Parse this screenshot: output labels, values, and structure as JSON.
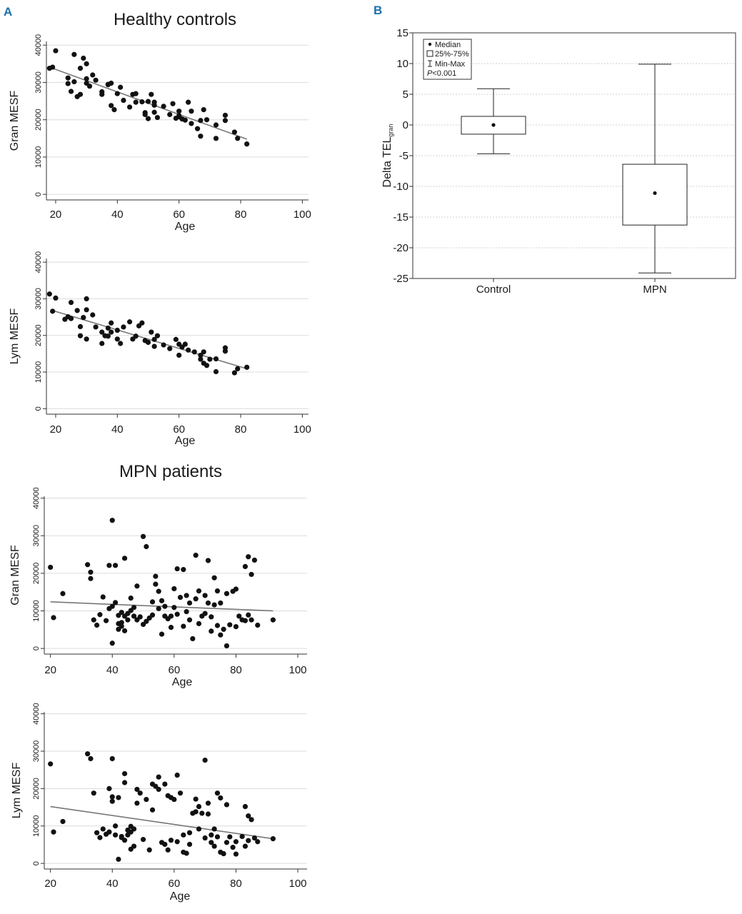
{
  "panel_labels": {
    "a": "A",
    "b": "B"
  },
  "group_titles": {
    "healthy": "Healthy controls",
    "mpn": "MPN patients"
  },
  "chart_data": [
    {
      "id": "healthy-gran",
      "type": "scatter",
      "group": "Healthy controls",
      "xlabel": "Age",
      "ylabel": "Gran MESF",
      "xlim": [
        17,
        102
      ],
      "ylim": [
        -1500,
        41000
      ],
      "xticks": [
        20,
        40,
        60,
        80,
        100
      ],
      "yticks": [
        0,
        10000,
        20000,
        30000,
        40000
      ],
      "grid": true,
      "fit_line": [
        [
          19,
          33800
        ],
        [
          82,
          14800
        ]
      ],
      "points": [
        [
          18,
          33800
        ],
        [
          19,
          34100
        ],
        [
          20,
          38500
        ],
        [
          24,
          31200
        ],
        [
          24,
          29700
        ],
        [
          25,
          27600
        ],
        [
          26,
          30200
        ],
        [
          26,
          37500
        ],
        [
          27,
          26200
        ],
        [
          28,
          26800
        ],
        [
          28,
          33800
        ],
        [
          29,
          36500
        ],
        [
          30,
          35000
        ],
        [
          30,
          31000
        ],
        [
          30,
          29800
        ],
        [
          31,
          29000
        ],
        [
          32,
          32000
        ],
        [
          33,
          30600
        ],
        [
          35,
          27500
        ],
        [
          35,
          26800
        ],
        [
          37,
          29500
        ],
        [
          37,
          29400
        ],
        [
          38,
          23800
        ],
        [
          38,
          29800
        ],
        [
          39,
          22700
        ],
        [
          40,
          27000
        ],
        [
          41,
          28700
        ],
        [
          42,
          25200
        ],
        [
          44,
          23400
        ],
        [
          45,
          26800
        ],
        [
          46,
          24700
        ],
        [
          46,
          27000
        ],
        [
          48,
          24800
        ],
        [
          49,
          21900
        ],
        [
          49,
          21400
        ],
        [
          50,
          20300
        ],
        [
          50,
          24900
        ],
        [
          51,
          26800
        ],
        [
          52,
          23900
        ],
        [
          52,
          22000
        ],
        [
          52,
          24700
        ],
        [
          53,
          20600
        ],
        [
          55,
          23600
        ],
        [
          57,
          21400
        ],
        [
          58,
          24300
        ],
        [
          59,
          20400
        ],
        [
          60,
          22300
        ],
        [
          60,
          20800
        ],
        [
          60,
          21100
        ],
        [
          61,
          20200
        ],
        [
          62,
          19900
        ],
        [
          63,
          24700
        ],
        [
          64,
          19000
        ],
        [
          64,
          22300
        ],
        [
          66,
          17600
        ],
        [
          67,
          15600
        ],
        [
          67,
          19800
        ],
        [
          68,
          22700
        ],
        [
          69,
          20000
        ],
        [
          72,
          18600
        ],
        [
          72,
          15000
        ],
        [
          75,
          21200
        ],
        [
          75,
          19800
        ],
        [
          78,
          16700
        ],
        [
          79,
          15000
        ],
        [
          82,
          13500
        ]
      ]
    },
    {
      "id": "healthy-lym",
      "type": "scatter",
      "group": "Healthy controls",
      "xlabel": "Age",
      "ylabel": "Lym MESF",
      "xlim": [
        17,
        102
      ],
      "ylim": [
        -1500,
        41000
      ],
      "xticks": [
        20,
        40,
        60,
        80,
        100
      ],
      "yticks": [
        0,
        10000,
        20000,
        30000,
        40000
      ],
      "grid": true,
      "fit_line": [
        [
          19,
          26800
        ],
        [
          82,
          10900
        ]
      ],
      "points": [
        [
          18,
          31300
        ],
        [
          19,
          26600
        ],
        [
          20,
          30200
        ],
        [
          23,
          24400
        ],
        [
          24,
          25100
        ],
        [
          25,
          24600
        ],
        [
          25,
          29000
        ],
        [
          27,
          26800
        ],
        [
          28,
          22400
        ],
        [
          28,
          19900
        ],
        [
          29,
          24900
        ],
        [
          30,
          27000
        ],
        [
          30,
          19000
        ],
        [
          30,
          30000
        ],
        [
          32,
          25600
        ],
        [
          33,
          22300
        ],
        [
          35,
          20900
        ],
        [
          35,
          17800
        ],
        [
          36,
          19900
        ],
        [
          37,
          22000
        ],
        [
          37,
          19800
        ],
        [
          38,
          23400
        ],
        [
          38,
          20900
        ],
        [
          40,
          21400
        ],
        [
          40,
          19000
        ],
        [
          41,
          17800
        ],
        [
          42,
          22300
        ],
        [
          44,
          23700
        ],
        [
          45,
          19000
        ],
        [
          46,
          19800
        ],
        [
          47,
          22600
        ],
        [
          48,
          23400
        ],
        [
          49,
          18600
        ],
        [
          50,
          18100
        ],
        [
          51,
          20900
        ],
        [
          52,
          17000
        ],
        [
          52,
          18900
        ],
        [
          53,
          19900
        ],
        [
          55,
          17400
        ],
        [
          57,
          16400
        ],
        [
          59,
          18900
        ],
        [
          60,
          17600
        ],
        [
          60,
          14600
        ],
        [
          61,
          16800
        ],
        [
          62,
          17600
        ],
        [
          63,
          16000
        ],
        [
          65,
          15500
        ],
        [
          67,
          13500
        ],
        [
          67,
          14600
        ],
        [
          68,
          15500
        ],
        [
          68,
          12400
        ],
        [
          69,
          11800
        ],
        [
          70,
          13500
        ],
        [
          72,
          10100
        ],
        [
          72,
          13600
        ],
        [
          75,
          16600
        ],
        [
          75,
          15700
        ],
        [
          78,
          9800
        ],
        [
          79,
          10900
        ],
        [
          82,
          11300
        ]
      ]
    },
    {
      "id": "mpn-gran",
      "type": "scatter",
      "group": "MPN patients",
      "xlabel": "Age",
      "ylabel": "Gran MESF",
      "xlim": [
        18,
        103
      ],
      "ylim": [
        -1500,
        40500
      ],
      "xticks": [
        20,
        40,
        60,
        80,
        100
      ],
      "yticks": [
        0,
        10000,
        20000,
        30000,
        40000
      ],
      "grid": true,
      "fit_line": [
        [
          20,
          12400
        ],
        [
          92,
          10000
        ]
      ],
      "points": [
        [
          20,
          21600
        ],
        [
          21,
          8200
        ],
        [
          24,
          14600
        ],
        [
          32,
          22300
        ],
        [
          33,
          20300
        ],
        [
          33,
          18600
        ],
        [
          34,
          7600
        ],
        [
          35,
          6200
        ],
        [
          36,
          9000
        ],
        [
          37,
          13700
        ],
        [
          38,
          7400
        ],
        [
          39,
          22100
        ],
        [
          39,
          10600
        ],
        [
          40,
          34100
        ],
        [
          40,
          11200
        ],
        [
          40,
          1400
        ],
        [
          41,
          12200
        ],
        [
          41,
          22100
        ],
        [
          42,
          8800
        ],
        [
          42,
          6600
        ],
        [
          42,
          5100
        ],
        [
          43,
          9600
        ],
        [
          43,
          6900
        ],
        [
          43,
          5900
        ],
        [
          44,
          24000
        ],
        [
          44,
          4700
        ],
        [
          44,
          8600
        ],
        [
          45,
          9300
        ],
        [
          45,
          7600
        ],
        [
          46,
          13400
        ],
        [
          46,
          10100
        ],
        [
          47,
          8600
        ],
        [
          47,
          10900
        ],
        [
          48,
          16600
        ],
        [
          48,
          7600
        ],
        [
          49,
          8400
        ],
        [
          50,
          29800
        ],
        [
          50,
          6400
        ],
        [
          51,
          27100
        ],
        [
          51,
          7200
        ],
        [
          52,
          8100
        ],
        [
          53,
          12400
        ],
        [
          53,
          8900
        ],
        [
          54,
          19200
        ],
        [
          54,
          17100
        ],
        [
          55,
          15200
        ],
        [
          55,
          10600
        ],
        [
          56,
          12700
        ],
        [
          56,
          3800
        ],
        [
          57,
          11200
        ],
        [
          57,
          8600
        ],
        [
          58,
          7900
        ],
        [
          59,
          5600
        ],
        [
          59,
          8600
        ],
        [
          60,
          15900
        ],
        [
          60,
          10900
        ],
        [
          61,
          21200
        ],
        [
          61,
          9100
        ],
        [
          62,
          13600
        ],
        [
          63,
          21000
        ],
        [
          63,
          5900
        ],
        [
          64,
          14100
        ],
        [
          64,
          9800
        ],
        [
          65,
          7600
        ],
        [
          65,
          12100
        ],
        [
          66,
          2600
        ],
        [
          67,
          24800
        ],
        [
          67,
          13200
        ],
        [
          68,
          15300
        ],
        [
          68,
          6600
        ],
        [
          69,
          8600
        ],
        [
          70,
          14100
        ],
        [
          70,
          9300
        ],
        [
          71,
          23400
        ],
        [
          71,
          12100
        ],
        [
          72,
          8400
        ],
        [
          72,
          4600
        ],
        [
          73,
          18800
        ],
        [
          73,
          11600
        ],
        [
          74,
          15300
        ],
        [
          74,
          6100
        ],
        [
          75,
          12100
        ],
        [
          75,
          3600
        ],
        [
          76,
          5100
        ],
        [
          77,
          14600
        ],
        [
          77,
          700
        ],
        [
          78,
          6300
        ],
        [
          79,
          15200
        ],
        [
          80,
          15800
        ],
        [
          80,
          5800
        ],
        [
          81,
          8600
        ],
        [
          82,
          7600
        ],
        [
          83,
          21800
        ],
        [
          83,
          7400
        ],
        [
          84,
          24400
        ],
        [
          84,
          8900
        ],
        [
          85,
          19700
        ],
        [
          85,
          7600
        ],
        [
          86,
          23500
        ],
        [
          87,
          6200
        ],
        [
          92,
          7600
        ]
      ]
    },
    {
      "id": "mpn-lym",
      "type": "scatter",
      "group": "MPN patients",
      "xlabel": "Age",
      "ylabel": "Lym MESF",
      "xlim": [
        18,
        103
      ],
      "ylim": [
        -1500,
        40500
      ],
      "xticks": [
        20,
        40,
        60,
        80,
        100
      ],
      "yticks": [
        0,
        10000,
        20000,
        30000,
        40000
      ],
      "grid": true,
      "fit_line": [
        [
          20,
          15200
        ],
        [
          92,
          6600
        ]
      ],
      "points": [
        [
          20,
          26600
        ],
        [
          21,
          8400
        ],
        [
          24,
          11200
        ],
        [
          32,
          29300
        ],
        [
          33,
          28000
        ],
        [
          34,
          18800
        ],
        [
          35,
          8200
        ],
        [
          36,
          6900
        ],
        [
          37,
          9200
        ],
        [
          38,
          7800
        ],
        [
          39,
          20000
        ],
        [
          39,
          8400
        ],
        [
          40,
          17800
        ],
        [
          40,
          16600
        ],
        [
          40,
          28000
        ],
        [
          41,
          10000
        ],
        [
          41,
          7600
        ],
        [
          42,
          17600
        ],
        [
          42,
          1100
        ],
        [
          43,
          7200
        ],
        [
          43,
          6900
        ],
        [
          44,
          24000
        ],
        [
          44,
          21600
        ],
        [
          44,
          6200
        ],
        [
          45,
          7600
        ],
        [
          45,
          8900
        ],
        [
          46,
          3800
        ],
        [
          46,
          9900
        ],
        [
          47,
          9200
        ],
        [
          47,
          4600
        ],
        [
          48,
          19800
        ],
        [
          48,
          16100
        ],
        [
          49,
          18800
        ],
        [
          50,
          6400
        ],
        [
          51,
          17100
        ],
        [
          52,
          3600
        ],
        [
          53,
          21200
        ],
        [
          53,
          14300
        ],
        [
          54,
          20600
        ],
        [
          55,
          23100
        ],
        [
          55,
          19800
        ],
        [
          56,
          5600
        ],
        [
          57,
          5100
        ],
        [
          57,
          21200
        ],
        [
          58,
          18100
        ],
        [
          58,
          3600
        ],
        [
          59,
          17600
        ],
        [
          60,
          17100
        ],
        [
          61,
          5800
        ],
        [
          61,
          23600
        ],
        [
          62,
          18800
        ],
        [
          63,
          3000
        ],
        [
          63,
          7600
        ],
        [
          64,
          2700
        ],
        [
          65,
          5100
        ],
        [
          65,
          8200
        ],
        [
          66,
          13400
        ],
        [
          67,
          17200
        ],
        [
          67,
          13800
        ],
        [
          68,
          9200
        ],
        [
          68,
          15200
        ],
        [
          69,
          13400
        ],
        [
          70,
          27600
        ],
        [
          70,
          6800
        ],
        [
          71,
          16100
        ],
        [
          71,
          13200
        ],
        [
          72,
          5600
        ],
        [
          72,
          7600
        ],
        [
          73,
          9200
        ],
        [
          73,
          4600
        ],
        [
          74,
          18800
        ],
        [
          74,
          7100
        ],
        [
          75,
          17500
        ],
        [
          75,
          3000
        ],
        [
          76,
          2600
        ],
        [
          77,
          15700
        ],
        [
          77,
          5600
        ],
        [
          78,
          7100
        ],
        [
          79,
          4300
        ],
        [
          80,
          2500
        ],
        [
          80,
          5800
        ],
        [
          82,
          7200
        ],
        [
          83,
          15200
        ],
        [
          83,
          4600
        ],
        [
          84,
          12700
        ],
        [
          84,
          6100
        ],
        [
          85,
          11700
        ],
        [
          86,
          6800
        ],
        [
          87,
          5800
        ],
        [
          92,
          6600
        ],
        [
          46,
          8400
        ],
        [
          59,
          6200
        ]
      ]
    },
    {
      "id": "delta-tel-box",
      "type": "box",
      "ylabel": "Delta TEL",
      "ylabel_subscript": "gran",
      "ylim": [
        -25,
        15
      ],
      "yticks": [
        -25,
        -20,
        -15,
        -10,
        -5,
        0,
        5,
        10,
        15
      ],
      "grid": true,
      "categories": [
        "Control",
        "MPN"
      ],
      "boxes": [
        {
          "name": "Control",
          "median": 0,
          "q1": -1.5,
          "q3": 1.4,
          "min": -4.7,
          "max": 5.9
        },
        {
          "name": "MPN",
          "median": -11.1,
          "q1": -16.3,
          "q3": -6.4,
          "min": -24.1,
          "max": 9.9
        }
      ],
      "legend": {
        "position": "top-left",
        "entries": [
          "Median",
          "25%-75%",
          "Min-Max"
        ],
        "p_italic": "P",
        "p_rest": "<0.001"
      }
    }
  ]
}
